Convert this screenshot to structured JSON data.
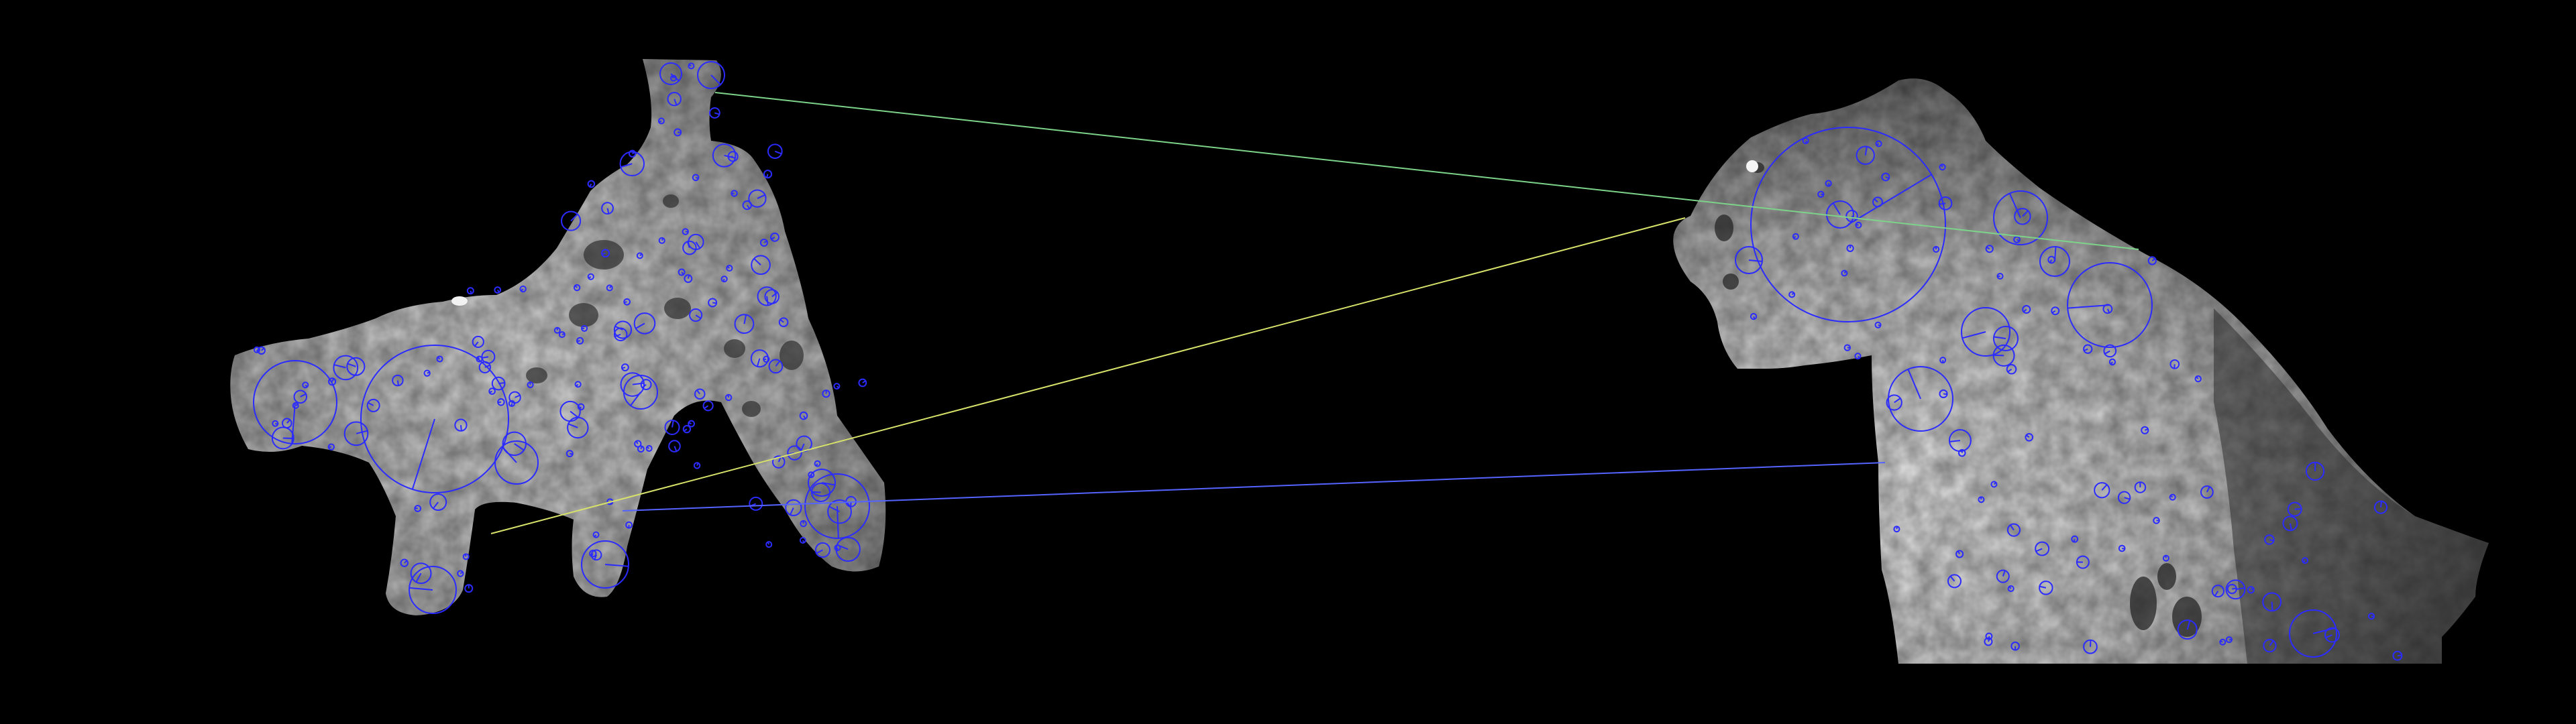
{
  "scene": {
    "background": "#000000",
    "left_shape_name": "left-silhouette",
    "right_shape_name": "right-silhouette"
  },
  "colors": {
    "keypoint_circle": "#2b2bff",
    "match_green": "#7dd38a",
    "match_yellow": "#d7e26a",
    "match_blue": "#5563ff",
    "silhouette_light": "#d0d0d0",
    "silhouette_mid": "#a7a7a7",
    "silhouette_dark": "#4a4a4a"
  },
  "matches": [
    {
      "name": "match-line-green",
      "color_key": "match_green"
    },
    {
      "name": "match-line-yellow",
      "color_key": "match_yellow"
    },
    {
      "name": "match-line-blue",
      "color_key": "match_blue"
    }
  ]
}
